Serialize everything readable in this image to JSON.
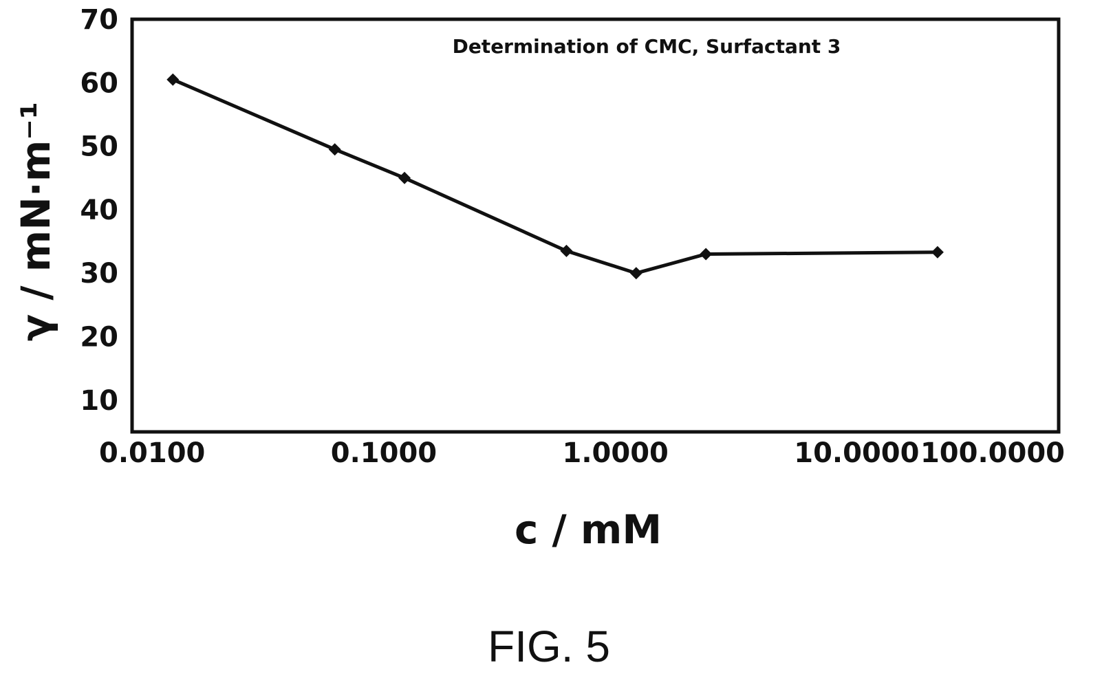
{
  "chart_data": {
    "type": "line",
    "title": "Determination of CMC, Surfactant 3",
    "xlabel": "c / mM",
    "ylabel": "γ / mN·m⁻¹",
    "xscale": "log",
    "xlim": [
      0.01,
      100
    ],
    "ylim": [
      5,
      70
    ],
    "x_ticks": [
      "0.0100",
      "0.1000",
      "1.0000",
      "10.0000",
      "100.0000"
    ],
    "y_ticks": [
      "10",
      "20",
      "30",
      "40",
      "50",
      "60",
      "70"
    ],
    "grid": false,
    "legend": "none",
    "series": [
      {
        "color": "#111111",
        "marker": "diamond",
        "x": [
          0.015,
          0.075,
          0.15,
          0.75,
          1.5,
          3.0,
          30.0
        ],
        "y": [
          60.5,
          49.5,
          45,
          33.5,
          30,
          33,
          33.3
        ]
      }
    ]
  },
  "figure_caption": "FIG. 5"
}
